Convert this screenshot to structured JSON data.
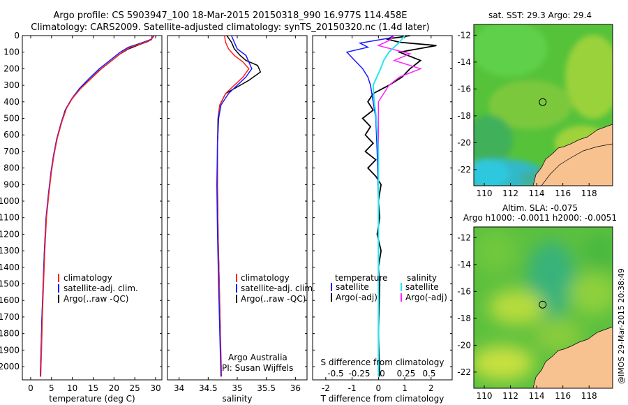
{
  "header": {
    "line1": "Argo profile: CS 5903947_100 18-Mar-2015 20150318_990 16.977S 114.458E",
    "line2": "Climatology: CARS2009. Satellite-adjusted climatology: synTS_20150320.nc (1.4d later)"
  },
  "colors": {
    "climatology": "#ff2020",
    "satellite": "#1a1aff",
    "argo": "#000000",
    "sat_salinity": "#22e8ee",
    "argo_salinity": "#ff22ff",
    "land": "#f7c28f"
  },
  "depth_axis": {
    "ticks": [
      0,
      100,
      200,
      300,
      400,
      500,
      600,
      700,
      800,
      900,
      1000,
      1100,
      1200,
      1300,
      1400,
      1500,
      1600,
      1700,
      1800,
      1900,
      2000
    ],
    "range": [
      0,
      2080
    ]
  },
  "panels": {
    "temperature": {
      "xlabel": "temperature (deg C)",
      "xticks": [
        0,
        5,
        10,
        15,
        20,
        25,
        30
      ],
      "xrange": [
        -2,
        31.5
      ],
      "legend": [
        "climatology",
        "satellite-adj. clim.",
        "Argo(..raw -QC)"
      ],
      "series": {
        "climatology": [
          [
            29.3,
            0
          ],
          [
            29,
            25
          ],
          [
            27,
            45
          ],
          [
            24,
            70
          ],
          [
            22,
            100
          ],
          [
            20,
            140
          ],
          [
            17,
            200
          ],
          [
            14.5,
            260
          ],
          [
            12,
            320
          ],
          [
            10,
            380
          ],
          [
            8.6,
            440
          ],
          [
            7.5,
            520
          ],
          [
            6.4,
            620
          ],
          [
            5.6,
            720
          ],
          [
            5,
            820
          ],
          [
            4.4,
            950
          ],
          [
            3.8,
            1100
          ],
          [
            3.4,
            1300
          ],
          [
            3.1,
            1500
          ],
          [
            2.8,
            1700
          ],
          [
            2.6,
            1900
          ],
          [
            2.4,
            2060
          ]
        ],
        "satellite": [
          [
            29.6,
            0
          ],
          [
            29,
            22
          ],
          [
            26.5,
            45
          ],
          [
            23.5,
            70
          ],
          [
            21.5,
            100
          ],
          [
            19.5,
            140
          ],
          [
            16.5,
            200
          ],
          [
            14,
            260
          ],
          [
            11.7,
            320
          ],
          [
            9.9,
            380
          ],
          [
            8.5,
            440
          ],
          [
            7.4,
            520
          ],
          [
            6.3,
            620
          ],
          [
            5.5,
            720
          ],
          [
            4.9,
            820
          ],
          [
            4.3,
            950
          ],
          [
            3.7,
            1100
          ],
          [
            3.3,
            1300
          ],
          [
            3,
            1500
          ],
          [
            2.7,
            1700
          ],
          [
            2.5,
            1900
          ],
          [
            2.3,
            2060
          ]
        ],
        "argo": [
          [
            29.2,
            0
          ],
          [
            29,
            20
          ],
          [
            28.2,
            35
          ],
          [
            26,
            55
          ],
          [
            23.5,
            80
          ],
          [
            21.5,
            110
          ],
          [
            19.5,
            150
          ],
          [
            16.5,
            210
          ],
          [
            14,
            270
          ],
          [
            11.5,
            330
          ],
          [
            9.7,
            390
          ],
          [
            8.3,
            450
          ],
          [
            7.3,
            530
          ],
          [
            6.2,
            630
          ],
          [
            5.5,
            730
          ],
          [
            4.9,
            830
          ],
          [
            4.3,
            960
          ],
          [
            3.7,
            1110
          ],
          [
            3.3,
            1310
          ],
          [
            3,
            1510
          ],
          [
            2.7,
            1710
          ],
          [
            2.5,
            1910
          ],
          [
            2.3,
            2060
          ]
        ]
      }
    },
    "salinity": {
      "xlabel": "salinity",
      "xticks": [
        34,
        34.5,
        35,
        35.5,
        36
      ],
      "xrange": [
        33.8,
        36.2
      ],
      "legend": [
        "climatology",
        "satellite-adj. clim.",
        "Argo(..raw -QC)"
      ],
      "series": {
        "climatology": [
          [
            34.78,
            0
          ],
          [
            34.8,
            40
          ],
          [
            34.85,
            80
          ],
          [
            34.95,
            120
          ],
          [
            35.1,
            160
          ],
          [
            35.2,
            200
          ],
          [
            35.1,
            250
          ],
          [
            34.95,
            300
          ],
          [
            34.8,
            350
          ],
          [
            34.7,
            420
          ],
          [
            34.68,
            500
          ],
          [
            34.66,
            650
          ],
          [
            34.66,
            900
          ],
          [
            34.67,
            1200
          ],
          [
            34.69,
            1500
          ],
          [
            34.71,
            1800
          ],
          [
            34.73,
            2060
          ]
        ],
        "satellite": [
          [
            34.9,
            0
          ],
          [
            34.95,
            40
          ],
          [
            35.0,
            80
          ],
          [
            35.15,
            120
          ],
          [
            35.2,
            160
          ],
          [
            35.25,
            200
          ],
          [
            35.15,
            250
          ],
          [
            35.0,
            300
          ],
          [
            34.85,
            350
          ],
          [
            34.72,
            420
          ],
          [
            34.68,
            500
          ],
          [
            34.66,
            650
          ],
          [
            34.65,
            900
          ],
          [
            34.66,
            1200
          ],
          [
            34.68,
            1500
          ],
          [
            34.7,
            1800
          ],
          [
            34.72,
            2060
          ]
        ],
        "argo": [
          [
            34.82,
            0
          ],
          [
            34.9,
            40
          ],
          [
            34.95,
            80
          ],
          [
            35.05,
            120
          ],
          [
            35.15,
            150
          ],
          [
            35.35,
            180
          ],
          [
            35.4,
            220
          ],
          [
            35.2,
            270
          ],
          [
            35.0,
            310
          ],
          [
            34.8,
            350
          ],
          [
            34.7,
            420
          ],
          [
            34.67,
            500
          ],
          [
            34.66,
            650
          ],
          [
            34.66,
            900
          ],
          [
            34.67,
            1200
          ],
          [
            34.69,
            1500
          ],
          [
            34.71,
            1800
          ]
        ]
      },
      "credit_line1": "Argo Australia",
      "credit_line2": "PI: Susan Wijffels"
    },
    "difference": {
      "xlabel": "T difference from climatology",
      "xticks": [
        -2,
        -1,
        0,
        1,
        2
      ],
      "xrange": [
        -2.5,
        2.8
      ],
      "sticks_label": "S difference from climatology",
      "sticks": [
        "-0.5",
        "-0.25",
        "0",
        "0.25",
        "0.5"
      ],
      "legend_temp_title": "temperature",
      "legend_sal_title": "salinity",
      "legend_temp": [
        "satellite",
        "Argo(-adj)"
      ],
      "legend_sal": [
        "satellite",
        "Argo(-adj)"
      ],
      "series": {
        "t_satellite": [
          [
            0.6,
            0
          ],
          [
            0.4,
            15
          ],
          [
            -0.7,
            45
          ],
          [
            -0.4,
            70
          ],
          [
            -1.2,
            100
          ],
          [
            -0.9,
            150
          ],
          [
            -0.6,
            200
          ],
          [
            -0.4,
            250
          ],
          [
            -0.3,
            300
          ],
          [
            -0.2,
            400
          ],
          [
            -0.1,
            500
          ],
          [
            -0.05,
            700
          ],
          [
            0,
            1000
          ],
          [
            0,
            2060
          ]
        ],
        "t_argo": [
          [
            1.2,
            0
          ],
          [
            0.8,
            10
          ],
          [
            0.3,
            20
          ],
          [
            0.8,
            40
          ],
          [
            2.2,
            60
          ],
          [
            1.5,
            80
          ],
          [
            0.8,
            100
          ],
          [
            1.6,
            150
          ],
          [
            1.2,
            200
          ],
          [
            0.9,
            250
          ],
          [
            0.4,
            300
          ],
          [
            -0.2,
            350
          ],
          [
            -0.4,
            400
          ],
          [
            -0.2,
            450
          ],
          [
            -0.6,
            500
          ],
          [
            -0.3,
            550
          ],
          [
            -0.5,
            600
          ],
          [
            -0.2,
            650
          ],
          [
            -0.5,
            700
          ],
          [
            -0.1,
            750
          ],
          [
            -0.4,
            800
          ],
          [
            -0.1,
            850
          ],
          [
            0.1,
            900
          ],
          [
            0,
            1000
          ],
          [
            0.05,
            1100
          ],
          [
            -0.05,
            1200
          ],
          [
            0.1,
            1300
          ],
          [
            0,
            1400
          ],
          [
            0.05,
            1500
          ],
          [
            0,
            1800
          ],
          [
            0.05,
            2060
          ]
        ],
        "s_satellite": [
          [
            0.25,
            0
          ],
          [
            0.2,
            40
          ],
          [
            0.1,
            100
          ],
          [
            0.05,
            150
          ],
          [
            0.02,
            200
          ],
          [
            -0.05,
            300
          ],
          [
            -0.04,
            400
          ],
          [
            -0.02,
            500
          ],
          [
            0,
            700
          ],
          [
            0,
            2060
          ]
        ],
        "s_argo": [
          [
            0.15,
            0
          ],
          [
            0.1,
            30
          ],
          [
            0,
            60
          ],
          [
            0.3,
            110
          ],
          [
            0.15,
            150
          ],
          [
            0.4,
            200
          ],
          [
            0.2,
            250
          ],
          [
            0.1,
            300
          ],
          [
            0,
            400
          ],
          [
            0,
            2060
          ]
        ]
      }
    }
  },
  "map1": {
    "title": "sat. SST: 29.3 Argo: 29.4",
    "xticks": [
      "110",
      "112",
      "114",
      "116",
      "118"
    ],
    "yticks": [
      "-12",
      "-14",
      "-16",
      "-18",
      "-20",
      "-22"
    ],
    "lon_range": [
      109.2,
      119.8
    ],
    "lat_range": [
      -23.2,
      -11.2
    ],
    "argo_lon": 114.458,
    "argo_lat": -16.977
  },
  "map2": {
    "title_line1": "Altim. SLA: -0.075",
    "title_line2": "Argo h1000: -0.0011 h2000: -0.0051",
    "xticks": [
      "110",
      "112",
      "114",
      "116",
      "118"
    ],
    "yticks": [
      "-12",
      "-14",
      "-16",
      "-18",
      "-20",
      "-22"
    ],
    "lon_range": [
      109.2,
      119.8
    ],
    "lat_range": [
      -23.2,
      -11.2
    ],
    "argo_lon": 114.458,
    "argo_lat": -16.977
  },
  "stamp": "@IMOS 29-Mar-2015 20:38:49"
}
